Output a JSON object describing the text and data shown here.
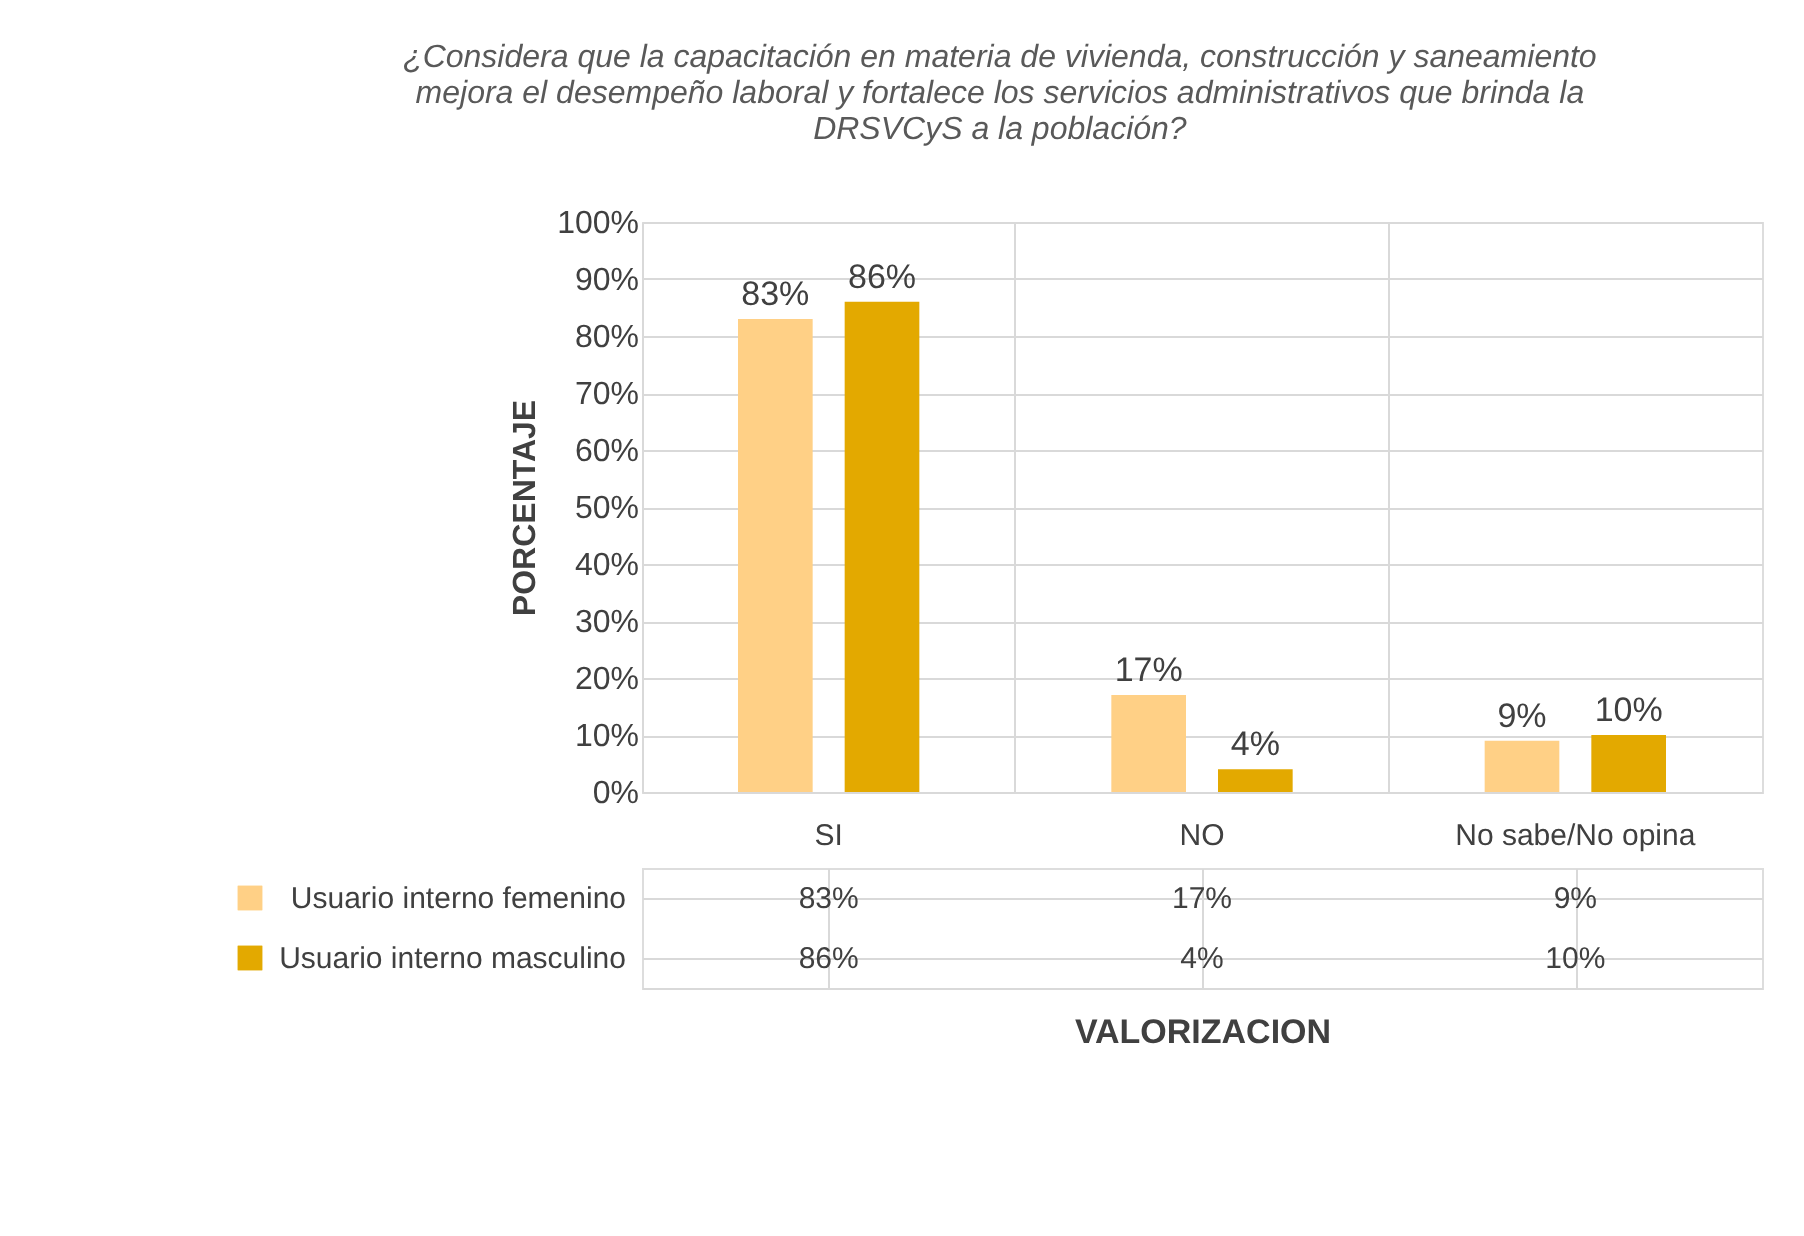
{
  "chart_data": {
    "type": "bar",
    "title": "¿Considera que la capacitación en materia de vivienda, construcción y saneamiento mejora el desempeño laboral y fortalece los servicios administrativos que brinda la DRSVCyS a la población?",
    "xlabel": "VALORIZACION",
    "ylabel": "PORCENTAJE",
    "categories": [
      "SI",
      "NO",
      "No sabe/No opina"
    ],
    "series": [
      {
        "name": "Usuario interno femenino",
        "color": "#ffd086",
        "values": [
          83,
          17,
          9
        ],
        "value_labels": [
          "83%",
          "17%",
          "9%"
        ]
      },
      {
        "name": "Usuario interno masculino",
        "color": "#e3a900",
        "values": [
          86,
          4,
          10
        ],
        "value_labels": [
          "86%",
          "4%",
          "10%"
        ]
      }
    ],
    "ylim": [
      0,
      100
    ],
    "yticks": [
      {
        "value": 0,
        "label": "0%"
      },
      {
        "value": 10,
        "label": "10%"
      },
      {
        "value": 20,
        "label": "20%"
      },
      {
        "value": 30,
        "label": "30%"
      },
      {
        "value": 40,
        "label": "40%"
      },
      {
        "value": 50,
        "label": "50%"
      },
      {
        "value": 60,
        "label": "60%"
      },
      {
        "value": 70,
        "label": "70%"
      },
      {
        "value": 80,
        "label": "80%"
      },
      {
        "value": 90,
        "label": "90%"
      },
      {
        "value": 100,
        "label": "100%"
      }
    ],
    "grid": true,
    "legend": "bottom"
  }
}
